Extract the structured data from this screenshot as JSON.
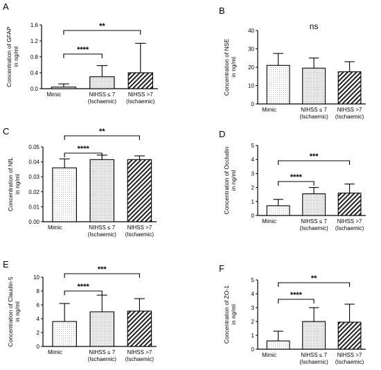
{
  "chart_data": [
    {
      "panel": "A",
      "type": "bar",
      "categories": [
        [
          "Mimic"
        ],
        [
          "NIHSS ≤ 7",
          "(Ischaemic)"
        ],
        [
          "NIHSS >7",
          "(Ischaemic)"
        ]
      ],
      "values": [
        0.04,
        0.3,
        0.4
      ],
      "errors": [
        0.08,
        0.28,
        0.74
      ],
      "ylabel": [
        "Concentration of GFAP",
        "in ng/ml"
      ],
      "ylim": [
        0,
        1.6
      ],
      "ticks": [
        "0.0",
        "0.4",
        "0.8",
        "1.2",
        "1.6"
      ],
      "annotations": [
        {
          "from": 0,
          "to": 1,
          "text": "****"
        },
        {
          "from": 0,
          "to": 2,
          "text": "**"
        }
      ]
    },
    {
      "panel": "B",
      "type": "bar",
      "categories": [
        [
          "Mimic"
        ],
        [
          "NIHSS ≤ 7",
          "(Ischaemic)"
        ],
        [
          "NIHSS >7",
          "(Ischaemic)"
        ]
      ],
      "values": [
        21,
        19.5,
        17.5
      ],
      "errors": [
        6.5,
        5.5,
        5.5
      ],
      "ylabel": [
        "Concentration of NSE",
        "in ng/ml"
      ],
      "ylim": [
        0,
        40
      ],
      "ticks": [
        "0",
        "10",
        "20",
        "30",
        "40"
      ],
      "annotations": [
        {
          "text": "ns"
        }
      ]
    },
    {
      "panel": "C",
      "type": "bar",
      "categories": [
        [
          "Mimic"
        ],
        [
          "NIHSS ≤ 7",
          "(Ischaemic)"
        ],
        [
          "NIHSS >7",
          "(Ischaemic)"
        ]
      ],
      "values": [
        0.036,
        0.0415,
        0.0415
      ],
      "errors": [
        0.006,
        0.003,
        0.0025
      ],
      "ylabel": [
        "Concentration of NfL",
        "in ng/ml"
      ],
      "ylim": [
        0,
        0.05
      ],
      "ticks": [
        "0.00",
        "0.01",
        "0.02",
        "0.03",
        "0.04",
        "0.05"
      ],
      "annotations": [
        {
          "from": 0,
          "to": 1,
          "text": "****"
        },
        {
          "from": 0,
          "to": 2,
          "text": "**"
        }
      ]
    },
    {
      "panel": "D",
      "type": "bar",
      "categories": [
        [
          "Mimic"
        ],
        [
          "NIHSS ≤ 7",
          "(Ischaemic)"
        ],
        [
          "NIHSS >7",
          "(Ischaemic)"
        ]
      ],
      "values": [
        0.7,
        1.55,
        1.6
      ],
      "errors": [
        0.45,
        0.45,
        0.65
      ],
      "ylabel": [
        "Concentration of Occludin",
        "in ng/ml"
      ],
      "ylim": [
        0,
        5
      ],
      "ticks": [
        "0",
        "1",
        "2",
        "3",
        "4",
        "5"
      ],
      "annotations": [
        {
          "from": 0,
          "to": 1,
          "text": "****"
        },
        {
          "from": 0,
          "to": 2,
          "text": "***"
        }
      ]
    },
    {
      "panel": "E",
      "type": "bar",
      "categories": [
        [
          "Mimic"
        ],
        [
          "NIHSS ≤ 7",
          "(Ischaemic)"
        ],
        [
          "NIHSS >7",
          "(Ischaemic)"
        ]
      ],
      "values": [
        3.6,
        5.0,
        5.1
      ],
      "errors": [
        2.6,
        2.4,
        1.8
      ],
      "ylabel": [
        "Concentration of Claudin-5",
        "in ng/ml"
      ],
      "ylim": [
        0,
        10
      ],
      "ticks": [
        "0",
        "2",
        "4",
        "6",
        "8",
        "10"
      ],
      "annotations": [
        {
          "from": 0,
          "to": 1,
          "text": "****"
        },
        {
          "from": 0,
          "to": 2,
          "text": "***"
        }
      ]
    },
    {
      "panel": "F",
      "type": "bar",
      "categories": [
        [
          "Mimic"
        ],
        [
          "NIHSS ≤ 7",
          "(Ischaemic)"
        ],
        [
          "NIHSS >7",
          "(Ischaemic)"
        ]
      ],
      "values": [
        0.6,
        2.0,
        1.95
      ],
      "errors": [
        0.7,
        1.0,
        1.3
      ],
      "ylabel": [
        "Concentration of ZO-1",
        "in ng/ml"
      ],
      "ylim": [
        0,
        5
      ],
      "ticks": [
        "0",
        "1",
        "2",
        "3",
        "4",
        "5"
      ],
      "annotations": [
        {
          "from": 0,
          "to": 1,
          "text": "****"
        },
        {
          "from": 0,
          "to": 2,
          "text": "**"
        }
      ]
    }
  ]
}
